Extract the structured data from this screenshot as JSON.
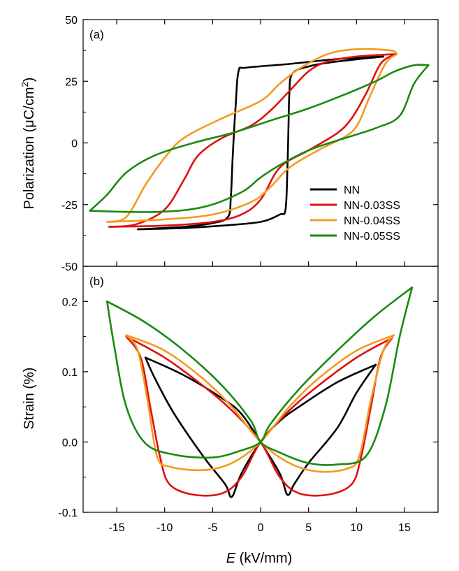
{
  "chart_data": [
    {
      "panel_label": "(a)",
      "type": "line",
      "ylabel": "Polarization (μC/cm²)",
      "ylabel_parts": {
        "prefix": "Polarization (",
        "unit": "μC/cm",
        "sup": "2",
        "suffix": ")"
      },
      "xlim": [
        -18.5,
        18.5
      ],
      "ylim": [
        -50,
        50
      ],
      "yticks": [
        "50",
        "25",
        "0",
        "-25",
        "-50"
      ],
      "ytick_values": [
        50,
        25,
        0,
        -25,
        -50
      ],
      "legend_position": "bottom-right",
      "series": [
        {
          "name": "NN",
          "color": "#000000",
          "upper": [
            [
              -12.8,
              -35
            ],
            [
              -8,
              -34
            ],
            [
              -5,
              -32.5
            ],
            [
              -3.4,
              -30
            ],
            [
              -3.1,
              -22
            ],
            [
              -2.9,
              -5
            ],
            [
              -2.6,
              15
            ],
            [
              -2.3,
              29
            ],
            [
              -1.5,
              30.5
            ],
            [
              3,
              32
            ],
            [
              8,
              34
            ],
            [
              12.8,
              35
            ]
          ],
          "lower": [
            [
              12.8,
              35
            ],
            [
              8,
              33
            ],
            [
              5,
              31
            ],
            [
              3.3,
              28
            ],
            [
              3,
              20
            ],
            [
              2.9,
              5
            ],
            [
              2.8,
              -10
            ],
            [
              2.6,
              -27
            ],
            [
              2,
              -29
            ],
            [
              0,
              -32
            ],
            [
              -4,
              -33.5
            ],
            [
              -8,
              -34.5
            ],
            [
              -12.8,
              -35
            ]
          ]
        },
        {
          "name": "NN-0.03SS",
          "color": "#e01010",
          "upper": [
            [
              -15.8,
              -34
            ],
            [
              -13,
              -33
            ],
            [
              -10,
              -27
            ],
            [
              -8,
              -15
            ],
            [
              -6.5,
              -5
            ],
            [
              -4,
              2
            ],
            [
              -1,
              7
            ],
            [
              1,
              13
            ],
            [
              3,
              21
            ],
            [
              5,
              29
            ],
            [
              7,
              33
            ],
            [
              10,
              35
            ],
            [
              14,
              36
            ]
          ],
          "lower": [
            [
              14,
              36
            ],
            [
              12.5,
              32
            ],
            [
              11,
              20
            ],
            [
              9.5,
              10
            ],
            [
              8,
              4
            ],
            [
              5,
              -3
            ],
            [
              2,
              -10
            ],
            [
              0,
              -23
            ],
            [
              -2,
              -29
            ],
            [
              -5,
              -32
            ],
            [
              -10,
              -33.5
            ],
            [
              -15.8,
              -34
            ]
          ]
        },
        {
          "name": "NN-0.04SS",
          "color": "#f39a21",
          "upper": [
            [
              -16,
              -32
            ],
            [
              -14,
              -30
            ],
            [
              -12,
              -17
            ],
            [
              -10,
              -6
            ],
            [
              -8,
              2
            ],
            [
              -4,
              10
            ],
            [
              0,
              17
            ],
            [
              2,
              24
            ],
            [
              4,
              30
            ],
            [
              7,
              36
            ],
            [
              10,
              38
            ],
            [
              13.5,
              37.5
            ],
            [
              14.2,
              36
            ]
          ],
          "lower": [
            [
              14.2,
              36
            ],
            [
              13,
              32
            ],
            [
              11.3,
              18
            ],
            [
              10.2,
              8
            ],
            [
              9,
              3
            ],
            [
              6,
              -3
            ],
            [
              3,
              -10
            ],
            [
              1,
              -18
            ],
            [
              -1,
              -24
            ],
            [
              -5,
              -29
            ],
            [
              -10,
              -31
            ],
            [
              -16,
              -32
            ]
          ]
        },
        {
          "name": "NN-0.05SS",
          "color": "#1a8a12",
          "upper": [
            [
              -17.8,
              -27.5
            ],
            [
              -16,
              -21
            ],
            [
              -14,
              -12
            ],
            [
              -11,
              -5
            ],
            [
              -7,
              0
            ],
            [
              -3,
              4
            ],
            [
              1,
              9
            ],
            [
              5,
              14
            ],
            [
              9,
              20
            ],
            [
              12,
              25
            ],
            [
              14,
              29
            ],
            [
              16,
              31.5
            ],
            [
              17.5,
              31.5
            ]
          ],
          "lower": [
            [
              17.5,
              31.5
            ],
            [
              16,
              24
            ],
            [
              14.5,
              11
            ],
            [
              12,
              6
            ],
            [
              8,
              1
            ],
            [
              5,
              -3
            ],
            [
              2,
              -9
            ],
            [
              0,
              -14
            ],
            [
              -2,
              -20
            ],
            [
              -6,
              -26
            ],
            [
              -11,
              -28
            ],
            [
              -17.8,
              -27.5
            ]
          ]
        }
      ]
    },
    {
      "panel_label": "(b)",
      "type": "line",
      "xlabel_italic": "E",
      "xlabel_rest": " (kV/mm)",
      "ylabel": "Strain (%)",
      "xlim": [
        -18.5,
        18.5
      ],
      "ylim": [
        -0.1,
        0.25
      ],
      "xticks": [
        "-15",
        "-10",
        "-5",
        "0",
        "5",
        "10",
        "15"
      ],
      "xtick_values": [
        -15,
        -10,
        -5,
        0,
        5,
        10,
        15
      ],
      "yticks": [
        "0.2",
        "0.1",
        "0.0",
        "-0.1"
      ],
      "ytick_values": [
        0.2,
        0.1,
        0.0,
        -0.1
      ],
      "series": [
        {
          "name": "NN",
          "color": "#000000",
          "branches": [
            [
              [
                -12,
                0.12
              ],
              [
                -8,
                0.095
              ],
              [
                -4,
                0.062
              ],
              [
                -2,
                0.04
              ],
              [
                0,
                0.0
              ],
              [
                2,
                -0.045
              ],
              [
                2.8,
                -0.075
              ],
              [
                3.5,
                -0.06
              ],
              [
                5,
                -0.03
              ],
              [
                8,
                0.02
              ],
              [
                10,
                0.07
              ],
              [
                12,
                0.11
              ]
            ],
            [
              [
                12,
                0.11
              ],
              [
                8,
                0.085
              ],
              [
                4,
                0.05
              ],
              [
                2,
                0.03
              ],
              [
                0,
                0.0
              ],
              [
                -2,
                -0.045
              ],
              [
                -3,
                -0.078
              ],
              [
                -3.7,
                -0.06
              ],
              [
                -6,
                -0.02
              ],
              [
                -9,
                0.04
              ],
              [
                -11,
                0.09
              ],
              [
                -12,
                0.12
              ]
            ]
          ]
        },
        {
          "name": "NN-0.03SS",
          "color": "#e01010",
          "branches": [
            [
              [
                -14,
                0.15
              ],
              [
                -10,
                0.12
              ],
              [
                -6,
                0.08
              ],
              [
                -3,
                0.045
              ],
              [
                0,
                0.0
              ],
              [
                2,
                -0.05
              ],
              [
                4,
                -0.073
              ],
              [
                7,
                -0.075
              ],
              [
                9.5,
                -0.06
              ],
              [
                10.5,
                -0.02
              ],
              [
                11.5,
                0.05
              ],
              [
                12.5,
                0.12
              ],
              [
                13.7,
                0.148
              ]
            ],
            [
              [
                13.7,
                0.148
              ],
              [
                10,
                0.12
              ],
              [
                6,
                0.08
              ],
              [
                3,
                0.045
              ],
              [
                0,
                0.0
              ],
              [
                -2,
                -0.05
              ],
              [
                -4,
                -0.073
              ],
              [
                -7,
                -0.075
              ],
              [
                -9.5,
                -0.06
              ],
              [
                -10.5,
                -0.02
              ],
              [
                -11.5,
                0.05
              ],
              [
                -12.5,
                0.12
              ],
              [
                -14,
                0.15
              ]
            ]
          ]
        },
        {
          "name": "NN-0.04SS",
          "color": "#f39a21",
          "branches": [
            [
              [
                -14,
                0.152
              ],
              [
                -10,
                0.13
              ],
              [
                -6,
                0.09
              ],
              [
                -3,
                0.05
              ],
              [
                0,
                0.0
              ],
              [
                3,
                -0.03
              ],
              [
                6,
                -0.042
              ],
              [
                9,
                -0.038
              ],
              [
                10.3,
                -0.02
              ],
              [
                11.5,
                0.06
              ],
              [
                12.8,
                0.13
              ],
              [
                13.9,
                0.152
              ]
            ],
            [
              [
                13.9,
                0.152
              ],
              [
                10,
                0.13
              ],
              [
                6,
                0.09
              ],
              [
                3,
                0.05
              ],
              [
                0,
                0.0
              ],
              [
                -3,
                -0.03
              ],
              [
                -6,
                -0.04
              ],
              [
                -9.5,
                -0.035
              ],
              [
                -10.8,
                -0.02
              ],
              [
                -11.8,
                0.06
              ],
              [
                -12.8,
                0.13
              ],
              [
                -14,
                0.152
              ]
            ]
          ]
        },
        {
          "name": "NN-0.05SS",
          "color": "#1a8a12",
          "branches": [
            [
              [
                -16,
                0.2
              ],
              [
                -12,
                0.17
              ],
              [
                -8,
                0.13
              ],
              [
                -4,
                0.08
              ],
              [
                -1,
                0.03
              ],
              [
                0,
                0.0
              ],
              [
                2,
                -0.015
              ],
              [
                5,
                -0.03
              ],
              [
                8,
                -0.032
              ],
              [
                11,
                -0.02
              ],
              [
                13,
                0.05
              ],
              [
                14.5,
                0.15
              ],
              [
                15.8,
                0.22
              ]
            ],
            [
              [
                15.8,
                0.22
              ],
              [
                12,
                0.18
              ],
              [
                8,
                0.13
              ],
              [
                4,
                0.075
              ],
              [
                1,
                0.025
              ],
              [
                0,
                0.0
              ],
              [
                -2,
                -0.012
              ],
              [
                -5,
                -0.022
              ],
              [
                -9,
                -0.018
              ],
              [
                -12,
                -0.002
              ],
              [
                -14,
                0.05
              ],
              [
                -15.3,
                0.14
              ],
              [
                -16,
                0.2
              ]
            ]
          ]
        }
      ]
    }
  ]
}
